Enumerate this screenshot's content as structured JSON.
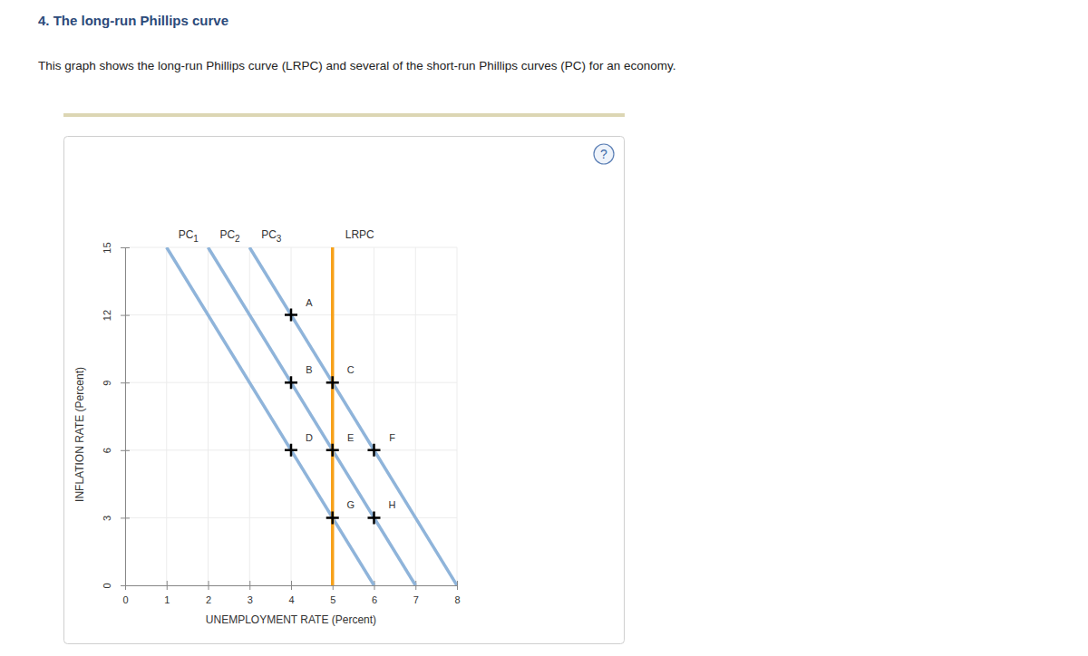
{
  "chart_data": {
    "type": "line",
    "title": "4. The long-run Phillips curve",
    "subtitle": "This graph shows the long-run Phillips curve (LRPC) and several of the short-run Phillips curves (PC) for an economy.",
    "help_icon": "?",
    "xlabel": "UNEMPLOYMENT RATE (Percent)",
    "ylabel": "INFLATION RATE (Percent)",
    "xlim": [
      0,
      8
    ],
    "xticks": [
      0,
      1,
      2,
      3,
      4,
      5,
      6,
      7,
      8
    ],
    "ylim": [
      0,
      15
    ],
    "yticks": [
      0,
      3,
      6,
      9,
      12,
      15
    ],
    "grid": true,
    "series": [
      {
        "name": "PC1",
        "color": "#8fb4da",
        "x": [
          1,
          6
        ],
        "values": [
          15,
          0
        ]
      },
      {
        "name": "PC2",
        "color": "#8fb4da",
        "x": [
          2,
          7
        ],
        "values": [
          15,
          0
        ]
      },
      {
        "name": "PC3",
        "color": "#8fb4da",
        "x": [
          3,
          8
        ],
        "values": [
          15,
          0
        ]
      },
      {
        "name": "LRPC",
        "color": "#f7a11a",
        "x": [
          5,
          5
        ],
        "values": [
          0,
          15
        ]
      },
      {
        "type": "scatter",
        "marker": "plus",
        "color": "#000000",
        "labels": [
          "A",
          "B",
          "C",
          "D",
          "E",
          "F",
          "G",
          "H"
        ],
        "x": [
          4,
          4,
          5,
          4,
          5,
          6,
          5,
          6
        ],
        "values": [
          12,
          9,
          9,
          6,
          6,
          6,
          3,
          3
        ]
      }
    ]
  }
}
